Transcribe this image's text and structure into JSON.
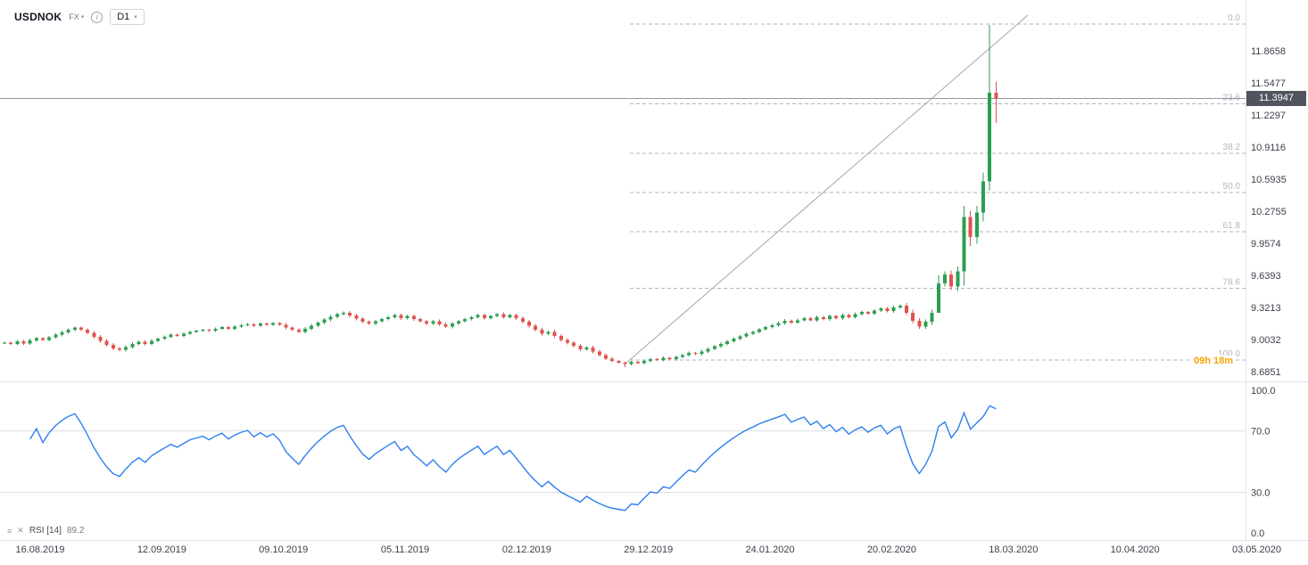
{
  "ui": {
    "toolbar": {
      "symbol": "USDNOK",
      "market": "FX",
      "timeframe": "D1"
    },
    "price_badge": "11.3947",
    "countdown": "09h 18m",
    "rsi_legend": {
      "name": "RSI",
      "period": "[14]",
      "value": "89.2"
    },
    "icons": {
      "chevron_down": "▾",
      "info": "i",
      "indicator_settings": "≡",
      "indicator_close": "✕"
    }
  },
  "chart_data": [
    {
      "type": "candlestick",
      "symbol": "USDNOK",
      "timeframe": "D1",
      "x_labels": [
        "16.08.2019",
        "12.09.2019",
        "09.10.2019",
        "05.11.2019",
        "02.12.2019",
        "29.12.2019",
        "24.01.2020",
        "20.02.2020",
        "18.03.2020",
        "10.04.2020",
        "03.05.2020"
      ],
      "y_ticks": [
        "11.8658",
        "11.5477",
        "11.2297",
        "10.9116",
        "10.5935",
        "10.2755",
        "9.9574",
        "9.6393",
        "9.3213",
        "9.0032",
        "8.6851"
      ],
      "current_price": 11.3947,
      "closes": [
        8.97,
        8.96,
        8.985,
        8.965,
        8.995,
        9.015,
        9.0,
        9.025,
        9.05,
        9.075,
        9.1,
        9.12,
        9.1,
        9.07,
        9.03,
        8.99,
        8.95,
        8.915,
        8.9,
        8.93,
        8.96,
        8.98,
        8.96,
        8.99,
        9.01,
        9.03,
        9.05,
        9.04,
        9.06,
        9.08,
        9.09,
        9.1,
        9.09,
        9.11,
        9.125,
        9.11,
        9.13,
        9.145,
        9.155,
        9.14,
        9.16,
        9.15,
        9.165,
        9.15,
        9.12,
        9.1,
        9.08,
        9.11,
        9.14,
        9.17,
        9.2,
        9.23,
        9.255,
        9.27,
        9.24,
        9.21,
        9.18,
        9.16,
        9.185,
        9.205,
        9.225,
        9.245,
        9.215,
        9.235,
        9.205,
        9.185,
        9.16,
        9.185,
        9.155,
        9.13,
        9.16,
        9.185,
        9.205,
        9.225,
        9.245,
        9.215,
        9.235,
        9.255,
        9.225,
        9.245,
        9.215,
        9.18,
        9.14,
        9.1,
        9.06,
        9.08,
        9.04,
        9.0,
        8.97,
        8.94,
        8.905,
        8.925,
        8.885,
        8.85,
        8.815,
        8.79,
        8.775,
        8.76,
        8.78,
        8.77,
        8.79,
        8.81,
        8.8,
        8.82,
        8.81,
        8.83,
        8.85,
        8.87,
        8.86,
        8.885,
        8.91,
        8.935,
        8.96,
        8.985,
        9.01,
        9.035,
        9.06,
        9.08,
        9.105,
        9.125,
        9.145,
        9.165,
        9.19,
        9.17,
        9.195,
        9.215,
        9.195,
        9.225,
        9.205,
        9.235,
        9.215,
        9.245,
        9.225,
        9.255,
        9.275,
        9.26,
        9.29,
        9.31,
        9.285,
        9.32,
        9.34,
        9.27,
        9.19,
        9.13,
        9.18,
        9.27,
        9.56,
        9.65,
        9.53,
        9.68,
        10.22,
        10.02,
        10.26,
        10.57,
        11.45,
        11.3947
      ],
      "wick_overrides": {
        "97": {
          "low": 8.73
        },
        "146": {
          "low": 9.36
        },
        "150": {
          "high": 10.33
        },
        "151": {
          "low": 9.93
        },
        "153": {
          "high": 10.66
        },
        "154": {
          "high": 12.12,
          "low": 10.48
        },
        "155": {
          "high": 11.56,
          "low": 11.15
        }
      },
      "fib_levels": [
        {
          "label": "0.0",
          "price": 12.13
        },
        {
          "label": "23.6",
          "price": 11.34
        },
        {
          "label": "38.2",
          "price": 10.85
        },
        {
          "label": "50.0",
          "price": 10.46
        },
        {
          "label": "61.8",
          "price": 10.07
        },
        {
          "label": "78.6",
          "price": 9.51
        },
        {
          "label": "100.0",
          "price": 8.8
        }
      ],
      "trend_line": {
        "from": {
          "index": 97,
          "price": 8.76
        },
        "to": {
          "index": 160,
          "price": 12.22
        }
      },
      "colors": {
        "up": "#2b9e52",
        "down": "#e0534e",
        "fib": "#b2b5be",
        "trend": "#a2a6ad",
        "price_line": "#9096a0"
      }
    },
    {
      "type": "line",
      "name": "RSI",
      "period": 14,
      "last_value": 89.2,
      "ylim": [
        0,
        100
      ],
      "y_ticks": [
        {
          "label": "100.0",
          "value": 100
        },
        {
          "label": "70.0",
          "value": 70
        },
        {
          "label": "30.0",
          "value": 30
        },
        {
          "label": "0.0",
          "value": 0
        }
      ],
      "overbought_level": 70,
      "oversold_level": 30,
      "color": "#2d7ff0"
    }
  ]
}
